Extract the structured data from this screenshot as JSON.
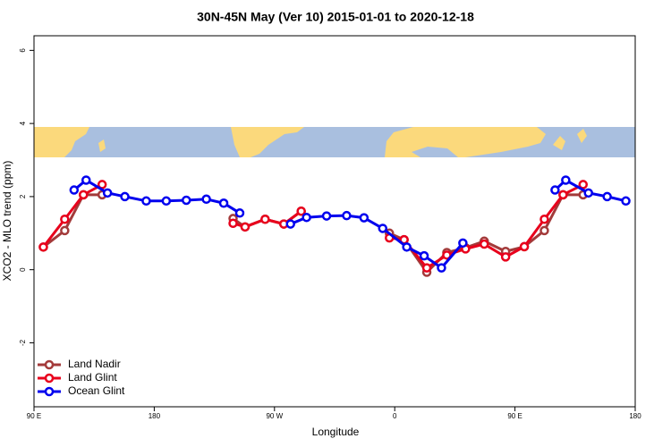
{
  "chart_data": {
    "type": "line",
    "title": "30N-45N May (Ver 10)   2015-01-01 to 2020-12-18",
    "x_label": "Longitude",
    "y_label": "XCO2 - MLO trend (ppm)",
    "xlim": [
      90,
      540
    ],
    "ylim": [
      -3.75,
      6.4
    ],
    "xticks": [
      {
        "value": 90,
        "label": "90 E"
      },
      180,
      {
        "value": 270,
        "label": "90 W"
      },
      {
        "value": 360,
        "label": "0"
      },
      {
        "value": 450,
        "label": "90 E"
      },
      {
        "value": 540,
        "label": "180"
      }
    ],
    "yticks": [
      -2,
      0,
      2,
      4,
      6
    ],
    "legend": "bottom-left",
    "series": [
      {
        "name": "Land Nadir",
        "color": "#a33a3a",
        "x": [
          97,
          113,
          127,
          141,
          null,
          239,
          248,
          263,
          277,
          290,
          null,
          356,
          367,
          384,
          399,
          413,
          427,
          443,
          457,
          472,
          486,
          501
        ],
        "values": [
          0.62,
          1.07,
          2.05,
          2.05,
          null,
          1.4,
          1.17,
          1.38,
          1.25,
          1.6,
          null,
          1.0,
          0.82,
          -0.07,
          0.47,
          0.6,
          0.78,
          0.5,
          0.63,
          1.07,
          2.05,
          2.05
        ]
      },
      {
        "name": "Land Glint",
        "color": "#e8001c",
        "x": [
          97,
          113,
          127,
          141,
          null,
          239,
          248,
          263,
          277,
          290,
          null,
          356,
          367,
          384,
          399,
          413,
          427,
          443,
          457,
          472,
          486,
          501
        ],
        "values": [
          0.62,
          1.38,
          2.05,
          2.33,
          null,
          1.27,
          1.17,
          1.38,
          1.25,
          1.6,
          null,
          0.87,
          0.82,
          0.05,
          0.4,
          0.57,
          0.7,
          0.35,
          0.63,
          1.38,
          2.05,
          2.33
        ]
      },
      {
        "name": "Ocean Glint",
        "color": "#0000ee",
        "x": [
          120,
          129,
          145,
          158,
          174,
          189,
          204,
          219,
          232,
          244,
          null,
          282,
          294,
          309,
          324,
          337,
          351,
          369,
          382,
          395,
          411,
          null,
          480,
          488,
          505,
          519,
          533
        ],
        "values": [
          2.18,
          2.45,
          2.1,
          2.0,
          1.88,
          1.88,
          1.9,
          1.93,
          1.82,
          1.55,
          null,
          1.25,
          1.43,
          1.47,
          1.48,
          1.42,
          1.13,
          0.62,
          0.38,
          0.05,
          0.73,
          null,
          2.18,
          2.45,
          2.1,
          2.0,
          1.88
        ]
      }
    ]
  }
}
